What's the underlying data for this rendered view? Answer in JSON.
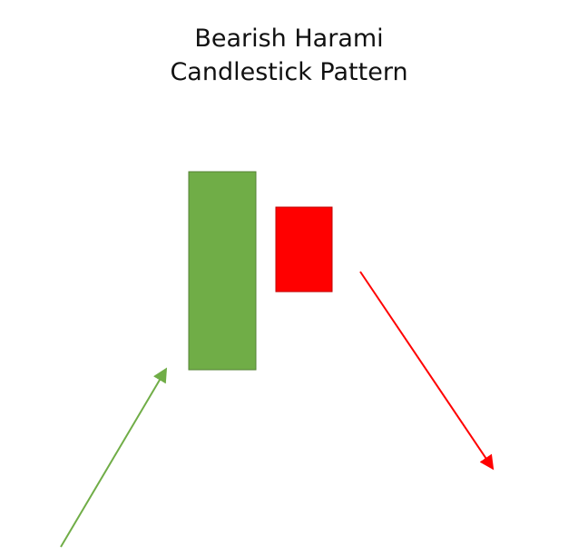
{
  "title": {
    "line1": "Bearish Harami",
    "line2": "Candlestick Pattern"
  },
  "colors": {
    "bullish_candle": "#70ad47",
    "bullish_candle_border": "#548235",
    "bearish_candle": "#ff0000",
    "bearish_candle_border": "#c00000",
    "uptrend_arrow": "#70ad47",
    "downtrend_arrow": "#ff0000",
    "background": "#ffffff"
  },
  "elements": {
    "first_candle": "bullish",
    "second_candle": "bearish",
    "prior_trend": "up",
    "following_trend": "down"
  }
}
